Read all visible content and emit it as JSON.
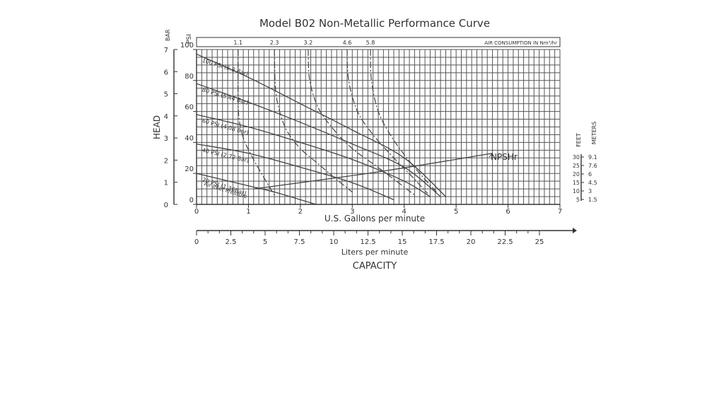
{
  "chart_data": {
    "type": "line",
    "title": "Model B02 Non-Metallic Performance Curve",
    "xlabel": "U.S. Gallons per minute",
    "x2label": "Liters per minute",
    "capacity_label": "CAPACITY",
    "head_label": "HEAD",
    "bar_label": "BAR",
    "psi_label": "PSI",
    "feet_label": "FEET",
    "meters_label": "METERS",
    "xlim": [
      0,
      7
    ],
    "ylim_psi": [
      0,
      100
    ],
    "x_ticks": [
      0,
      1,
      2,
      3,
      4,
      5,
      6,
      7
    ],
    "lpm_ticks": [
      "0",
      "2.5",
      "5",
      "7.5",
      "10",
      "12.5",
      "15",
      "17.5",
      "20",
      "22.5",
      "25"
    ],
    "psi_ticks": [
      0,
      20,
      40,
      60,
      80,
      100
    ],
    "bar_ticks": [
      0,
      1,
      2,
      3,
      4,
      5,
      6,
      7
    ],
    "npsh_feet": [
      "30",
      "25",
      "20",
      "15",
      "10",
      "5"
    ],
    "npsh_meters": [
      "9.1",
      "7.6",
      "6",
      "4.5",
      "3",
      "1.5"
    ],
    "air_label": "AIR CONSUMPTION IN Nm³/hr",
    "air_values": [
      "1.1",
      "2.3",
      "3.2",
      "4.6",
      "5.8"
    ],
    "npsh_label": "NPSHr",
    "inlet_label": "Air Inlet Pressure",
    "series": [
      {
        "name": "100 PSI (6.8 Bar)",
        "x": [
          0,
          1,
          2,
          3,
          4,
          4.8
        ],
        "y": [
          97,
          82,
          65,
          48,
          30,
          5
        ]
      },
      {
        "name": "80 PSI (5.44 Bar)",
        "x": [
          0,
          1,
          2,
          3,
          4,
          4.7
        ],
        "y": [
          78,
          66,
          53,
          39,
          24,
          5
        ]
      },
      {
        "name": "60 PSI (4.08 Bar)",
        "x": [
          0,
          1,
          2,
          3,
          4,
          4.5
        ],
        "y": [
          58,
          50,
          40,
          29,
          15,
          5
        ]
      },
      {
        "name": "40 PSI (2.72 Bar)",
        "x": [
          0,
          1,
          2,
          3,
          3.8
        ],
        "y": [
          39,
          33,
          24,
          14,
          3
        ]
      },
      {
        "name": "20 PSI (1.36Bar)",
        "x": [
          0,
          0.5,
          1,
          1.5,
          2,
          2.3
        ],
        "y": [
          20,
          16,
          12,
          8,
          3,
          0
        ]
      }
    ],
    "air_curves": [
      {
        "value": "1.1",
        "x": [
          0.8,
          0.8,
          0.82,
          0.9,
          1.05,
          1.25,
          1.5
        ],
        "y": [
          100,
          70,
          55,
          43,
          32,
          20,
          6
        ]
      },
      {
        "value": "2.3",
        "x": [
          1.5,
          1.52,
          1.6,
          1.75,
          2.0,
          2.35,
          2.7,
          3.0
        ],
        "y": [
          100,
          75,
          60,
          47,
          36,
          26,
          16,
          8
        ]
      },
      {
        "value": "3.2",
        "x": [
          2.15,
          2.18,
          2.35,
          2.65,
          3.0,
          3.45,
          3.85,
          4.2
        ],
        "y": [
          100,
          80,
          62,
          48,
          36,
          25,
          15,
          6
        ]
      },
      {
        "value": "4.6",
        "x": [
          2.9,
          2.93,
          3.1,
          3.4,
          3.8,
          4.15,
          4.45
        ],
        "y": [
          100,
          80,
          60,
          45,
          30,
          18,
          7
        ]
      },
      {
        "value": "5.8",
        "x": [
          3.35,
          3.37,
          3.5,
          3.75,
          4.05,
          4.35,
          4.65
        ],
        "y": [
          100,
          80,
          60,
          44,
          30,
          18,
          7
        ]
      }
    ],
    "npsh_curve": {
      "x": [
        1.1,
        3.5,
        5.7
      ],
      "y": [
        10,
        21,
        33
      ]
    },
    "grid": true
  }
}
